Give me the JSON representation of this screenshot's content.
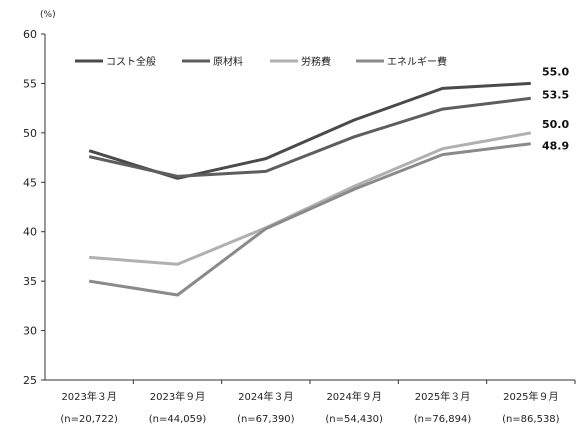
{
  "chart_data": {
    "type": "line",
    "unit_label": "(%)",
    "categories": [
      "2023年３月",
      "2023年９月",
      "2024年３月",
      "2024年９月",
      "2025年３月",
      "2025年９月"
    ],
    "sample_sizes": [
      "(n=20,722)",
      "(n=44,059)",
      "(n=67,390)",
      "(n=54,430)",
      "(n=76,894)",
      "(n=86,538)"
    ],
    "ylim": [
      25,
      60
    ],
    "yticks": [
      25,
      30,
      35,
      40,
      45,
      50,
      55,
      60
    ],
    "grid": false,
    "legend_position": "top-left",
    "series": [
      {
        "name": "コスト全般",
        "color": "#4a4a4a",
        "values": [
          48.2,
          45.4,
          47.4,
          51.3,
          54.5,
          55.0
        ],
        "end_label": "55.0"
      },
      {
        "name": "原材料",
        "color": "#5e5e5e",
        "values": [
          47.6,
          45.6,
          46.1,
          49.6,
          52.4,
          53.5
        ],
        "end_label": "53.5"
      },
      {
        "name": "労務費",
        "color": "#b0b0b0",
        "values": [
          37.4,
          36.7,
          40.4,
          44.6,
          48.4,
          50.0
        ],
        "end_label": "50.0"
      },
      {
        "name": "エネルギー費",
        "color": "#8a8a8a",
        "values": [
          35.0,
          33.6,
          40.3,
          44.3,
          47.8,
          48.9
        ],
        "end_label": "48.9"
      }
    ]
  }
}
